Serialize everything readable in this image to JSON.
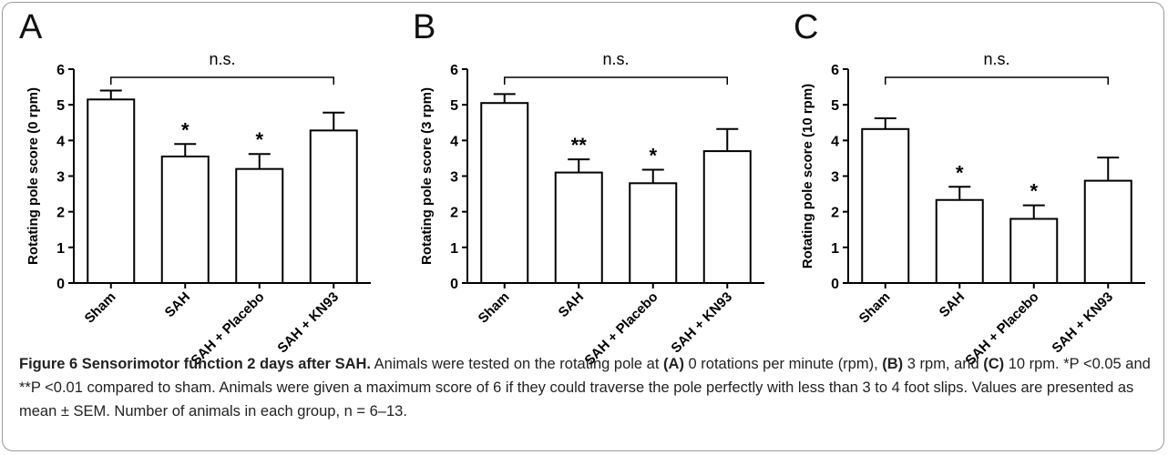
{
  "chart_data": [
    {
      "type": "bar",
      "panel": "A",
      "categories": [
        "Sham",
        "SAH",
        "SAH + Placebo",
        "SAH + KN93"
      ],
      "values": [
        5.15,
        3.55,
        3.2,
        4.28
      ],
      "errors": [
        0.25,
        0.35,
        0.42,
        0.5
      ],
      "annotations": [
        "",
        "*",
        "*",
        ""
      ],
      "bracket_label": "n.s.",
      "ylabel": "Rotating pole score (0 rpm)",
      "ylim": [
        0,
        6
      ],
      "yticks": [
        "0",
        "1",
        "2",
        "3",
        "4",
        "5",
        "6"
      ]
    },
    {
      "type": "bar",
      "panel": "B",
      "categories": [
        "Sham",
        "SAH",
        "SAH + Placebo",
        "SAH + KN93"
      ],
      "values": [
        5.05,
        3.1,
        2.8,
        3.7
      ],
      "errors": [
        0.25,
        0.37,
        0.38,
        0.62
      ],
      "annotations": [
        "",
        "**",
        "*",
        ""
      ],
      "bracket_label": "n.s.",
      "ylabel": "Rotating pole score (3 rpm)",
      "ylim": [
        0,
        6
      ],
      "yticks": [
        "0",
        "1",
        "2",
        "3",
        "4",
        "5",
        "6"
      ]
    },
    {
      "type": "bar",
      "panel": "C",
      "categories": [
        "Sham",
        "SAH",
        "SAH + Placebo",
        "SAH + KN93"
      ],
      "values": [
        4.32,
        2.33,
        1.8,
        2.87
      ],
      "errors": [
        0.3,
        0.37,
        0.38,
        0.65
      ],
      "annotations": [
        "",
        "*",
        "*",
        ""
      ],
      "bracket_label": "n.s.",
      "ylabel": "Rotating pole score (10 rpm)",
      "ylim": [
        0,
        6
      ],
      "yticks": [
        "0",
        "1",
        "2",
        "3",
        "4",
        "5",
        "6"
      ]
    }
  ],
  "caption": {
    "title": "Figure 6 Sensorimotor function 2 days after SAH.",
    "p1": " Animals were tested on the rotating pole at ",
    "ref_a": "(A)",
    "p2": " 0 rotations per minute (rpm), ",
    "ref_b": "(B)",
    "p3": " 3 rpm, and ",
    "ref_c": "(C)",
    "p4": " 10 rpm. *P <0.05 and **P <0.01 compared to sham. Animals were given a maximum score of 6 if they could traverse the pole perfectly with less than 3 to 4 foot slips. Values are presented as mean ± SEM. Number of animals in each group, n = 6–13."
  }
}
